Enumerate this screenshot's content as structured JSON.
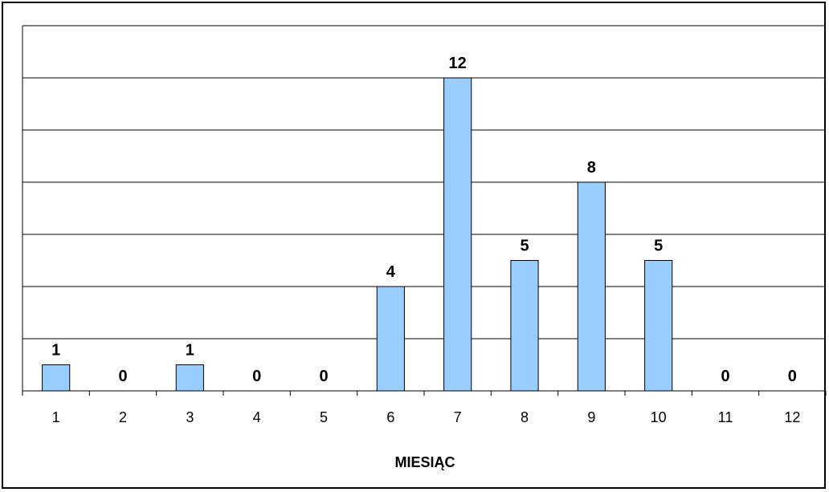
{
  "chart_data": {
    "type": "bar",
    "title": "",
    "xlabel": "MIESIĄC",
    "ylabel": "",
    "categories": [
      "1",
      "2",
      "3",
      "4",
      "5",
      "6",
      "7",
      "8",
      "9",
      "10",
      "11",
      "12"
    ],
    "values": [
      1,
      0,
      1,
      0,
      0,
      4,
      12,
      5,
      8,
      5,
      0,
      0
    ],
    "ylim": [
      0,
      14
    ],
    "grid": true,
    "legend": "none",
    "bar_color": "#99CCFF",
    "bar_edge_color": "#000000",
    "gridline_color": "#000000"
  }
}
